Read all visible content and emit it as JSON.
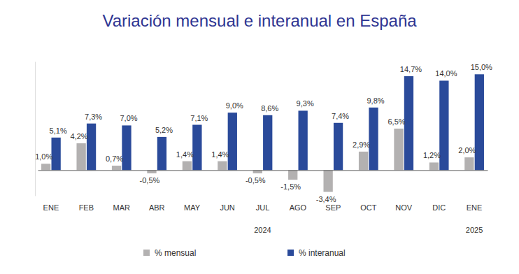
{
  "chart_data": {
    "type": "bar",
    "title": "Variación mensual e interanual en España",
    "categories": [
      "ENE",
      "FEB",
      "MAR",
      "ABR",
      "MAY",
      "JUN",
      "JUL",
      "AGO",
      "SEP",
      "OCT",
      "NOV",
      "DIC",
      "ENE"
    ],
    "year_labels": [
      null,
      null,
      null,
      null,
      null,
      null,
      "2024",
      null,
      null,
      null,
      null,
      null,
      "2025"
    ],
    "series": [
      {
        "name": "% mensual",
        "color": "#b3b1b1",
        "values": [
          1.0,
          4.2,
          0.7,
          -0.5,
          1.4,
          1.4,
          -0.5,
          -1.5,
          -3.4,
          2.9,
          6.5,
          1.2,
          2.0
        ],
        "value_labels": [
          "1,0%",
          "4,2%",
          "0,7%",
          "-0,5%",
          "1,4%",
          "1,4%",
          "-0,5%",
          "-1,5%",
          "-3,4%",
          "2,9%",
          "6,5%",
          "1,2%",
          "2,0%"
        ]
      },
      {
        "name": "% interanual",
        "color": "#2a4a9a",
        "values": [
          5.1,
          7.3,
          7.0,
          5.2,
          7.1,
          9.0,
          8.6,
          9.3,
          7.4,
          9.8,
          14.7,
          14.0,
          15.0
        ],
        "value_labels": [
          "5,1%",
          "7,3%",
          "7,0%",
          "5,2%",
          "7,1%",
          "9,0%",
          "8,6%",
          "9,3%",
          "7,4%",
          "9,8%",
          "14,7%",
          "14,0%",
          "15,0%"
        ]
      }
    ],
    "ylim": [
      -4,
      17
    ],
    "grid": false,
    "data_labels": true,
    "tick_labels": "x",
    "legend": "bottom"
  }
}
